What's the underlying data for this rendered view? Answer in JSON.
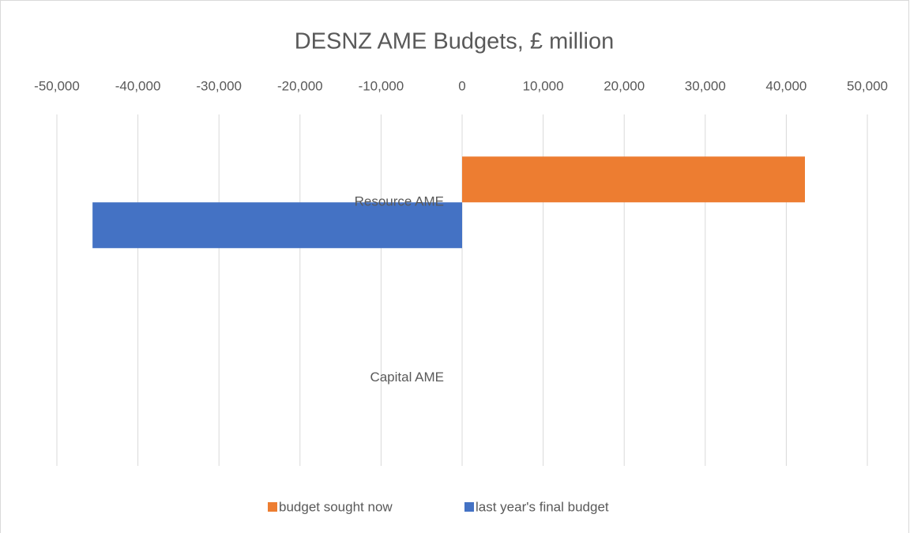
{
  "chart_data": {
    "type": "hbar",
    "title": "DESNZ AME Budgets, £ million",
    "categories": [
      "Resource AME",
      "Capital AME"
    ],
    "series": [
      {
        "name": "budget sought now",
        "color": "#ed7d31",
        "values": [
          42300,
          0
        ]
      },
      {
        "name": "last year's final budget",
        "color": "#4472c4",
        "values": [
          -45600,
          0
        ]
      }
    ],
    "xlim": [
      -50000,
      50000
    ],
    "xticks": [
      {
        "value": -50000,
        "label": "-50,000"
      },
      {
        "value": -40000,
        "label": "-40,000"
      },
      {
        "value": -30000,
        "label": "-30,000"
      },
      {
        "value": -20000,
        "label": "-20,000"
      },
      {
        "value": -10000,
        "label": "-10,000"
      },
      0,
      {
        "value": 10000,
        "label": "10,000"
      },
      {
        "value": 20000,
        "label": "20,000"
      },
      {
        "value": 30000,
        "label": "30,000"
      },
      {
        "value": 40000,
        "label": "40,000"
      },
      {
        "value": 50000,
        "label": "50,000"
      }
    ],
    "grid": true,
    "legend": "bottom"
  }
}
